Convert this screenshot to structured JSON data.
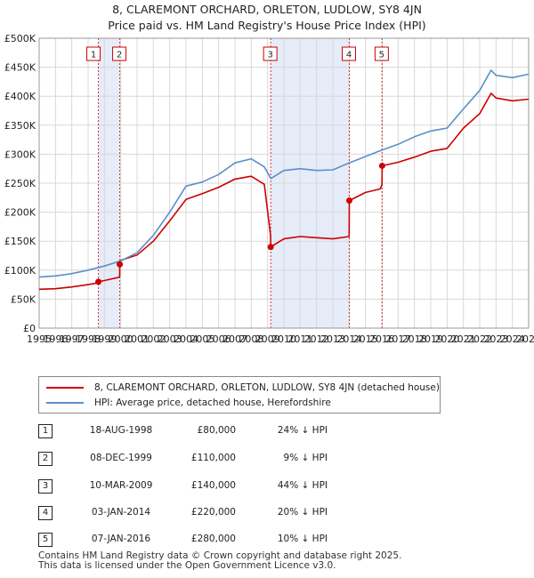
{
  "title_line1": "8, CLAREMONT ORCHARD, ORLETON, LUDLOW, SY8 4JN",
  "title_line2": "Price paid vs. HM Land Registry's House Price Index (HPI)",
  "colors": {
    "price_paid": "#cc0000",
    "hpi": "#5b8fc9",
    "band": "#dde6f5",
    "grid": "#d8d8d8"
  },
  "chart_data": {
    "type": "line",
    "x_range": [
      1995,
      2025
    ],
    "ylim": [
      0,
      500000
    ],
    "y_ticks": [
      {
        "value": 0,
        "label": "£0"
      },
      {
        "value": 50000,
        "label": "£50K"
      },
      {
        "value": 100000,
        "label": "£100K"
      },
      {
        "value": 150000,
        "label": "£150K"
      },
      {
        "value": 200000,
        "label": "£200K"
      },
      {
        "value": 250000,
        "label": "£250K"
      },
      {
        "value": 300000,
        "label": "£300K"
      },
      {
        "value": 350000,
        "label": "£350K"
      },
      {
        "value": 400000,
        "label": "£400K"
      },
      {
        "value": 450000,
        "label": "£450K"
      },
      {
        "value": 500000,
        "label": "£500K"
      }
    ],
    "x_ticks": [
      "1995",
      "1996",
      "1997",
      "1998",
      "1999",
      "2000",
      "2001",
      "2002",
      "2003",
      "2004",
      "2005",
      "2006",
      "2007",
      "2008",
      "2009",
      "2010",
      "2011",
      "2012",
      "2013",
      "2014",
      "2015",
      "2016",
      "2017",
      "2018",
      "2019",
      "2020",
      "2021",
      "2022",
      "2023",
      "2024",
      "2025"
    ],
    "sales": [
      {
        "id": "1",
        "x": 1998.63,
        "value": 80000
      },
      {
        "id": "2",
        "x": 1999.94,
        "value": 110000
      },
      {
        "id": "3",
        "x": 2009.19,
        "value": 140000
      },
      {
        "id": "4",
        "x": 2014.01,
        "value": 220000
      },
      {
        "id": "5",
        "x": 2016.02,
        "value": 280000
      }
    ],
    "series": [
      {
        "name": "8, CLAREMONT ORCHARD, ORLETON, LUDLOW, SY8 4JN (detached house)",
        "color": "#cc0000",
        "points": [
          [
            1995,
            67000
          ],
          [
            1996,
            68000
          ],
          [
            1997,
            71000
          ],
          [
            1998,
            75000
          ],
          [
            1998.62,
            78000
          ],
          [
            1998.63,
            80000
          ],
          [
            1999,
            82000
          ],
          [
            1999.93,
            88000
          ],
          [
            1999.94,
            110000
          ],
          [
            2000,
            117000
          ],
          [
            2001,
            126000
          ],
          [
            2002,
            150000
          ],
          [
            2003,
            185000
          ],
          [
            2004,
            222000
          ],
          [
            2005,
            232000
          ],
          [
            2006,
            243000
          ],
          [
            2007,
            257000
          ],
          [
            2008,
            262000
          ],
          [
            2008.8,
            248000
          ],
          [
            2009.18,
            160000
          ],
          [
            2009.19,
            140000
          ],
          [
            2010,
            154000
          ],
          [
            2011,
            158000
          ],
          [
            2012,
            156000
          ],
          [
            2013,
            154000
          ],
          [
            2014,
            158000
          ],
          [
            2014.01,
            220000
          ],
          [
            2015,
            234000
          ],
          [
            2015.9,
            240000
          ],
          [
            2016.01,
            248000
          ],
          [
            2016.02,
            280000
          ],
          [
            2017,
            286000
          ],
          [
            2018,
            295000
          ],
          [
            2019,
            305000
          ],
          [
            2020,
            310000
          ],
          [
            2021,
            345000
          ],
          [
            2022,
            370000
          ],
          [
            2022.7,
            405000
          ],
          [
            2023,
            397000
          ],
          [
            2024,
            392000
          ],
          [
            2025,
            395000
          ]
        ]
      },
      {
        "name": "HPI: Average price, detached house, Herefordshire",
        "color": "#5b8fc9",
        "points": [
          [
            1995,
            88000
          ],
          [
            1996,
            90000
          ],
          [
            1997,
            94000
          ],
          [
            1998,
            100000
          ],
          [
            1999,
            107000
          ],
          [
            2000,
            116000
          ],
          [
            2001,
            130000
          ],
          [
            2002,
            160000
          ],
          [
            2003,
            200000
          ],
          [
            2004,
            245000
          ],
          [
            2005,
            252000
          ],
          [
            2006,
            265000
          ],
          [
            2007,
            285000
          ],
          [
            2008,
            292000
          ],
          [
            2008.8,
            278000
          ],
          [
            2009.2,
            258000
          ],
          [
            2010,
            272000
          ],
          [
            2011,
            275000
          ],
          [
            2012,
            272000
          ],
          [
            2013,
            273000
          ],
          [
            2014,
            285000
          ],
          [
            2015,
            296000
          ],
          [
            2016,
            307000
          ],
          [
            2017,
            317000
          ],
          [
            2018,
            330000
          ],
          [
            2019,
            340000
          ],
          [
            2020,
            345000
          ],
          [
            2021,
            378000
          ],
          [
            2022,
            410000
          ],
          [
            2022.7,
            445000
          ],
          [
            2023,
            436000
          ],
          [
            2024,
            432000
          ],
          [
            2025,
            438000
          ]
        ]
      }
    ]
  },
  "legend": {
    "entries": [
      {
        "label": "8, CLAREMONT ORCHARD, ORLETON, LUDLOW, SY8 4JN (detached house)",
        "color": "#cc0000"
      },
      {
        "label": "HPI: Average price, detached house, Herefordshire",
        "color": "#5b8fc9"
      }
    ]
  },
  "table": [
    {
      "num": "1",
      "date": "18-AUG-1998",
      "price": "£80,000",
      "hpi": "24% ↓ HPI"
    },
    {
      "num": "2",
      "date": "08-DEC-1999",
      "price": "£110,000",
      "hpi": "9% ↓ HPI"
    },
    {
      "num": "3",
      "date": "10-MAR-2009",
      "price": "£140,000",
      "hpi": "44% ↓ HPI"
    },
    {
      "num": "4",
      "date": "03-JAN-2014",
      "price": "£220,000",
      "hpi": "20% ↓ HPI"
    },
    {
      "num": "5",
      "date": "07-JAN-2016",
      "price": "£280,000",
      "hpi": "10% ↓ HPI"
    }
  ],
  "footer": {
    "line1": "Contains HM Land Registry data © Crown copyright and database right 2025.",
    "line2": "This data is licensed under the Open Government Licence v3.0."
  }
}
